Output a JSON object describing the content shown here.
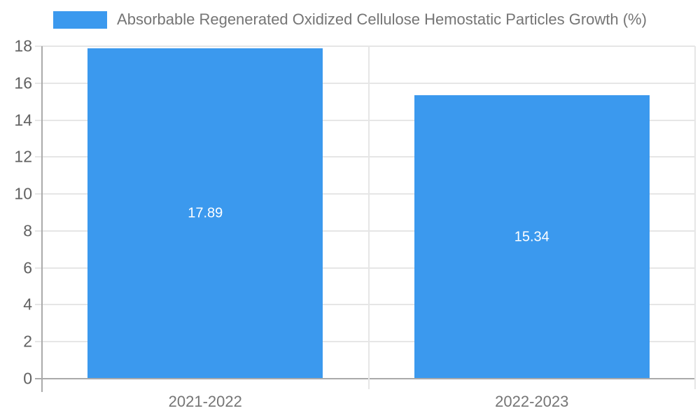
{
  "chart_data": {
    "type": "bar",
    "title": "Absorbable Regenerated Oxidized Cellulose Hemostatic Particles Growth (%)",
    "categories": [
      "2021-2022",
      "2022-2023"
    ],
    "values": [
      17.89,
      15.34
    ],
    "value_labels": [
      "17.89",
      "15.34"
    ],
    "xlabel": "",
    "ylabel": "",
    "ylim": [
      0,
      18
    ],
    "yticks": [
      0,
      2,
      4,
      6,
      8,
      10,
      12,
      14,
      16,
      18
    ],
    "grid": "horizontal gridlines on, vertical boundaries between categories",
    "legend_position": "top-center",
    "legend_entries": [
      "Absorbable Regenerated Oxidized Cellulose Hemostatic Particles Growth (%)"
    ],
    "colors": {
      "bar": "#3b99ee",
      "gridline": "#e6e6e6",
      "axis_line": "#aaaaaa",
      "ytick_text": "#616161",
      "xtick_text": "#757575",
      "legend_text": "#757575",
      "value_label_text": "#ffffff",
      "background": "#ffffff"
    }
  }
}
